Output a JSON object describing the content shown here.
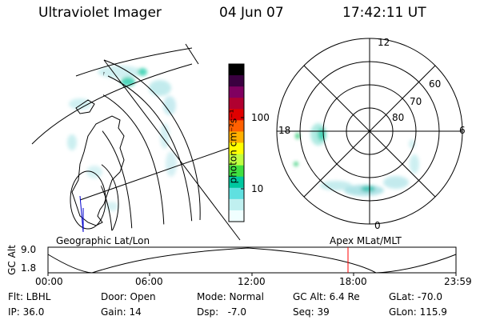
{
  "header": {
    "title": "Ultraviolet Imager",
    "date": "04 Jun 07",
    "time": "17:42:11 UT"
  },
  "colorbar": {
    "unit_label": "photon cm⁻²s⁻¹",
    "ticks": [
      "100",
      "10"
    ],
    "colors": [
      "#000000",
      "#3a0040",
      "#800060",
      "#b00030",
      "#e00000",
      "#ff6000",
      "#ffb000",
      "#ffff00",
      "#c0ff40",
      "#40e040",
      "#00c8a0",
      "#60e0e0",
      "#c0f0f0",
      "#f0ffff"
    ]
  },
  "polar_plot": {
    "mlt_labels": [
      "12",
      "18",
      "6",
      "0"
    ],
    "lat_labels": [
      "60",
      "70",
      "80"
    ]
  },
  "map_plot": {
    "caption": "Geographic Lat/Lon"
  },
  "apex_caption": "Apex MLat/MLT",
  "altitude_strip": {
    "axis_label": "GC Alt",
    "y_ticks": [
      "9.0",
      "1.8"
    ],
    "x_ticks": [
      "00:00",
      "06:00",
      "12:00",
      "18:00",
      "23:59"
    ],
    "marker_color": "#ff0000"
  },
  "info": {
    "row1": {
      "filter": "Flt: LBHL",
      "door": "Door: Open",
      "mode": "Mode: Normal",
      "gc_alt": "GC Alt: 6.4 Re",
      "glat": "GLat: -70.0"
    },
    "row2": {
      "ip": "IP: 36.0",
      "gain": "Gain: 14",
      "dsp": "Dsp:   -7.0",
      "seq": "Seq: 39",
      "glon": "GLon: 115.9"
    }
  }
}
